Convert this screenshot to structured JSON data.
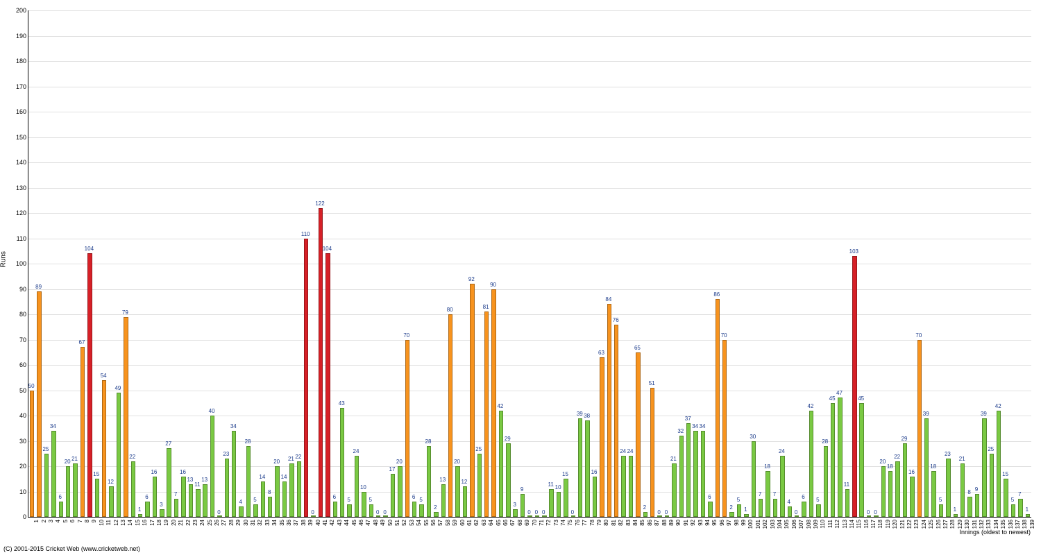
{
  "chart": {
    "type": "bar",
    "ylabel": "Runs",
    "xlabel": "Innings (oldest to newest)",
    "copyright": "(C) 2001-2015 Cricket Web (www.cricketweb.net)",
    "ylim": [
      0,
      200
    ],
    "ytick_step": 10,
    "background_color": "#ffffff",
    "grid_color": "#e0e0e0",
    "label_color": "#1a3a8a",
    "colors": {
      "green": "#7ac943",
      "orange": "#f7931e",
      "red": "#d62027"
    },
    "values": [
      50,
      89,
      25,
      34,
      6,
      20,
      21,
      67,
      104,
      15,
      54,
      12,
      49,
      79,
      22,
      1,
      6,
      16,
      3,
      27,
      7,
      16,
      13,
      11,
      13,
      40,
      0,
      23,
      34,
      4,
      28,
      5,
      14,
      8,
      20,
      14,
      21,
      22,
      110,
      0,
      122,
      104,
      6,
      43,
      5,
      24,
      10,
      5,
      0,
      0,
      17,
      20,
      70,
      6,
      5,
      28,
      2,
      13,
      80,
      20,
      12,
      92,
      25,
      81,
      90,
      42,
      29,
      3,
      9,
      0,
      0,
      0,
      11,
      10,
      15,
      0,
      39,
      38,
      16,
      63,
      84,
      76,
      24,
      24,
      65,
      2,
      51,
      0,
      0,
      21,
      32,
      37,
      34,
      34,
      6,
      86,
      70,
      2,
      5,
      1,
      30,
      7,
      18,
      7,
      24,
      4,
      0,
      6,
      42,
      5,
      28,
      45,
      47,
      11,
      103,
      45,
      0,
      0,
      20,
      18,
      22,
      29,
      16,
      70,
      39,
      18,
      5,
      23,
      1,
      21,
      8,
      9,
      39,
      25,
      42,
      15,
      5,
      7,
      1
    ],
    "bar_colors": [
      "orange",
      "orange",
      "green",
      "green",
      "green",
      "green",
      "green",
      "orange",
      "red",
      "green",
      "orange",
      "green",
      "green",
      "orange",
      "green",
      "green",
      "green",
      "green",
      "green",
      "green",
      "green",
      "green",
      "green",
      "green",
      "green",
      "green",
      "green",
      "green",
      "green",
      "green",
      "green",
      "green",
      "green",
      "green",
      "green",
      "green",
      "green",
      "green",
      "red",
      "green",
      "red",
      "red",
      "green",
      "green",
      "green",
      "green",
      "green",
      "green",
      "green",
      "green",
      "green",
      "green",
      "orange",
      "green",
      "green",
      "green",
      "green",
      "green",
      "orange",
      "green",
      "green",
      "orange",
      "green",
      "orange",
      "orange",
      "green",
      "green",
      "green",
      "green",
      "green",
      "green",
      "green",
      "green",
      "green",
      "green",
      "green",
      "green",
      "green",
      "green",
      "orange",
      "orange",
      "orange",
      "green",
      "green",
      "orange",
      "green",
      "orange",
      "green",
      "green",
      "green",
      "green",
      "green",
      "green",
      "green",
      "green",
      "orange",
      "orange",
      "green",
      "green",
      "green",
      "green",
      "green",
      "green",
      "green",
      "green",
      "green",
      "green",
      "green",
      "green",
      "green",
      "green",
      "green",
      "green",
      "green",
      "red",
      "green",
      "green",
      "green",
      "green",
      "green",
      "green",
      "green",
      "green",
      "orange",
      "green",
      "green",
      "green",
      "green",
      "green",
      "green",
      "green",
      "green",
      "green",
      "green",
      "green",
      "green",
      "green",
      "green",
      "green"
    ]
  }
}
